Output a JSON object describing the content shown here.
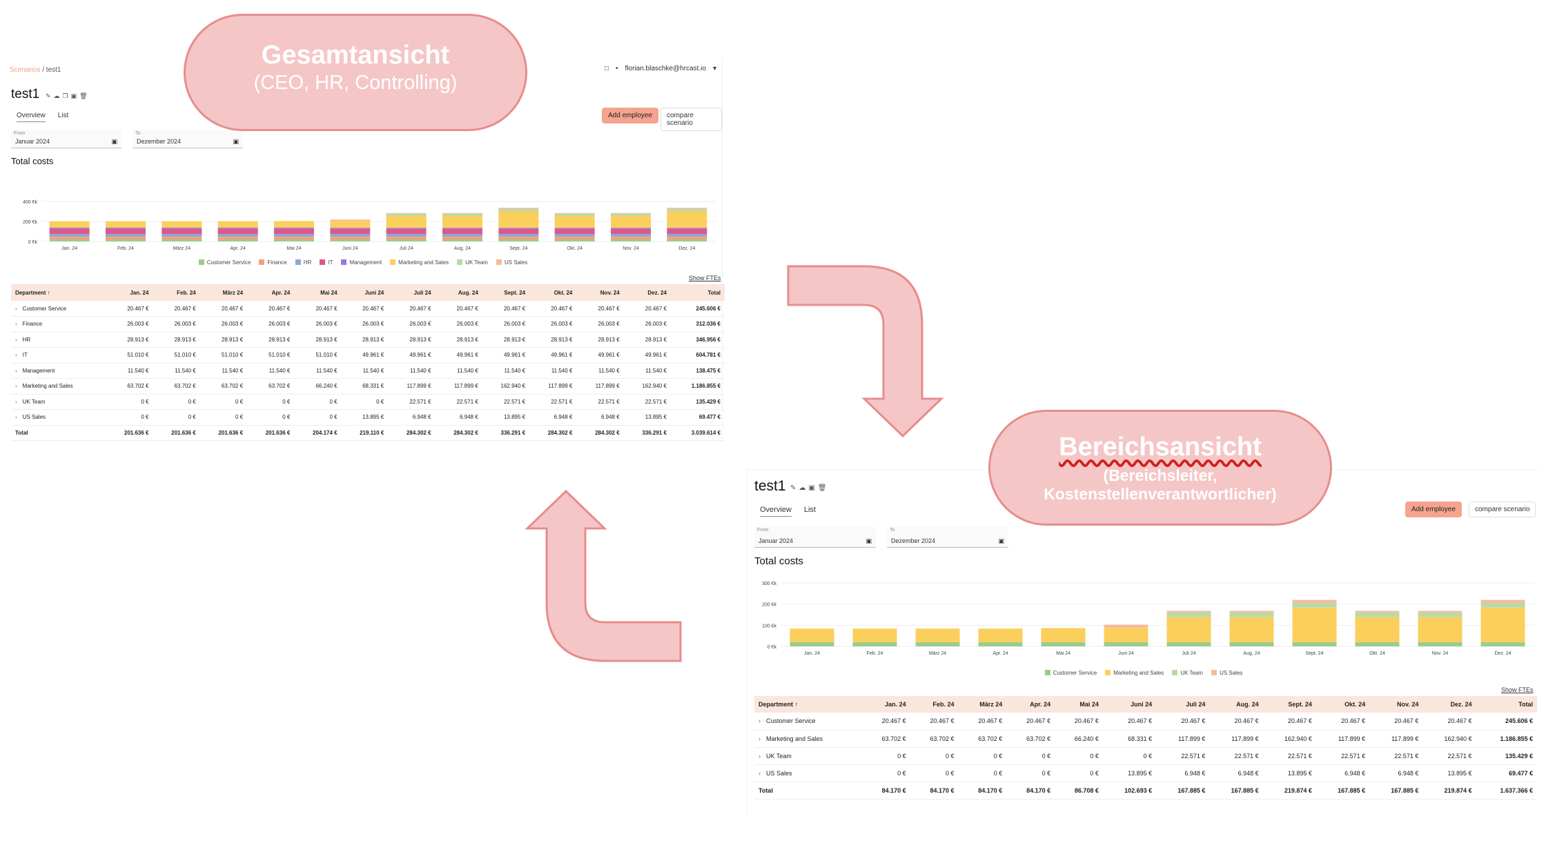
{
  "colors": {
    "accent": "#f4a48e",
    "header_bg": "#fbe6dc",
    "Customer Service": "#9ccc8a",
    "Finance": "#f4a07a",
    "HR": "#8ea8d0",
    "IT": "#e0568a",
    "Management": "#9a78d6",
    "Marketing and Sales": "#fbcf5c",
    "UK Team": "#b8dba6",
    "US Sales": "#f7b99b",
    "overlay_fill": "#f5c6c6",
    "overlay_border": "#e88c8c"
  },
  "overlays": {
    "left_title": "Gesamtansicht",
    "left_sub": "(CEO, HR, Controlling)",
    "right_title": "Bereichsansicht",
    "right_sub_1": "(Bereichsleiter,",
    "right_sub_2": "Kostenstellenverantwortlicher)"
  },
  "full": {
    "breadcrumb_link": "Scenarios",
    "breadcrumb_rest": " / test1",
    "user": "florian.blaschke@hrcast.io",
    "title": "test1",
    "tabs": [
      "Overview",
      "List"
    ],
    "add_employee": "Add employee",
    "compare": "compare scenario",
    "from_label": "From",
    "from_value": "Januar 2024",
    "to_label": "To",
    "to_value": "Dezember 2024",
    "section": "Total costs",
    "show_ftes": "Show FTEs",
    "table_header": [
      "Department ↑",
      "Jan. 24",
      "Feb. 24",
      "März 24",
      "Apr. 24",
      "Mai 24",
      "Juni 24",
      "Juli 24",
      "Aug. 24",
      "Sept. 24",
      "Okt. 24",
      "Nov. 24",
      "Dez. 24",
      "Total"
    ],
    "rows": [
      {
        "dep": "Customer Service",
        "cells": [
          "20.467 €",
          "20.467 €",
          "20.467 €",
          "20.467 €",
          "20.467 €",
          "20.467 €",
          "20.467 €",
          "20.467 €",
          "20.467 €",
          "20.467 €",
          "20.467 €",
          "20.467 €",
          "245.606 €"
        ]
      },
      {
        "dep": "Finance",
        "cells": [
          "26.003 €",
          "26.003 €",
          "26.003 €",
          "26.003 €",
          "26.003 €",
          "26.003 €",
          "26.003 €",
          "26.003 €",
          "26.003 €",
          "26.003 €",
          "26.003 €",
          "26.003 €",
          "312.036 €"
        ]
      },
      {
        "dep": "HR",
        "cells": [
          "28.913 €",
          "28.913 €",
          "28.913 €",
          "28.913 €",
          "28.913 €",
          "28.913 €",
          "28.913 €",
          "28.913 €",
          "28.913 €",
          "28.913 €",
          "28.913 €",
          "28.913 €",
          "346.956 €"
        ]
      },
      {
        "dep": "IT",
        "cells": [
          "51.010 €",
          "51.010 €",
          "51.010 €",
          "51.010 €",
          "51.010 €",
          "49.961 €",
          "49.961 €",
          "49.961 €",
          "49.961 €",
          "49.961 €",
          "49.961 €",
          "49.961 €",
          "604.781 €"
        ]
      },
      {
        "dep": "Management",
        "cells": [
          "11.540 €",
          "11.540 €",
          "11.540 €",
          "11.540 €",
          "11.540 €",
          "11.540 €",
          "11.540 €",
          "11.540 €",
          "11.540 €",
          "11.540 €",
          "11.540 €",
          "11.540 €",
          "138.475 €"
        ]
      },
      {
        "dep": "Marketing and Sales",
        "cells": [
          "63.702 €",
          "63.702 €",
          "63.702 €",
          "63.702 €",
          "66.240 €",
          "68.331 €",
          "117.899 €",
          "117.899 €",
          "162.940 €",
          "117.899 €",
          "117.899 €",
          "162.940 €",
          "1.186.855 €"
        ]
      },
      {
        "dep": "UK Team",
        "cells": [
          "0 €",
          "0 €",
          "0 €",
          "0 €",
          "0 €",
          "0 €",
          "22.571 €",
          "22.571 €",
          "22.571 €",
          "22.571 €",
          "22.571 €",
          "22.571 €",
          "135.429 €"
        ]
      },
      {
        "dep": "US Sales",
        "cells": [
          "0 €",
          "0 €",
          "0 €",
          "0 €",
          "0 €",
          "13.895 €",
          "6.948 €",
          "6.948 €",
          "13.895 €",
          "6.948 €",
          "6.948 €",
          "13.895 €",
          "69.477 €"
        ]
      }
    ],
    "total_row": {
      "dep": "Total",
      "cells": [
        "201.636 €",
        "201.636 €",
        "201.636 €",
        "201.636 €",
        "204.174 €",
        "219.110 €",
        "284.302 €",
        "284.302 €",
        "336.291 €",
        "284.302 €",
        "284.302 €",
        "336.291 €",
        "3.039.614 €"
      ]
    }
  },
  "area": {
    "title": "test1",
    "tabs": [
      "Overview",
      "List"
    ],
    "add_employee": "Add employee",
    "compare": "compare scenario",
    "from_label": "From",
    "from_value": "Januar 2024",
    "to_label": "To",
    "to_value": "Dezember 2024",
    "section": "Total costs",
    "show_ftes": "Show FTEs",
    "table_header": [
      "Department ↑",
      "Jan. 24",
      "Feb. 24",
      "März 24",
      "Apr. 24",
      "Mai 24",
      "Juni 24",
      "Juli 24",
      "Aug. 24",
      "Sept. 24",
      "Okt. 24",
      "Nov. 24",
      "Dez. 24",
      "Total"
    ],
    "rows": [
      {
        "dep": "Customer Service",
        "cells": [
          "20.467 €",
          "20.467 €",
          "20.467 €",
          "20.467 €",
          "20.467 €",
          "20.467 €",
          "20.467 €",
          "20.467 €",
          "20.467 €",
          "20.467 €",
          "20.467 €",
          "20.467 €",
          "245.606 €"
        ]
      },
      {
        "dep": "Marketing and Sales",
        "cells": [
          "63.702 €",
          "63.702 €",
          "63.702 €",
          "63.702 €",
          "66.240 €",
          "68.331 €",
          "117.899 €",
          "117.899 €",
          "162.940 €",
          "117.899 €",
          "117.899 €",
          "162.940 €",
          "1.186.855 €"
        ]
      },
      {
        "dep": "UK Team",
        "cells": [
          "0 €",
          "0 €",
          "0 €",
          "0 €",
          "0 €",
          "0 €",
          "22.571 €",
          "22.571 €",
          "22.571 €",
          "22.571 €",
          "22.571 €",
          "22.571 €",
          "135.429 €"
        ]
      },
      {
        "dep": "US Sales",
        "cells": [
          "0 €",
          "0 €",
          "0 €",
          "0 €",
          "0 €",
          "13.895 €",
          "6.948 €",
          "6.948 €",
          "13.895 €",
          "6.948 €",
          "6.948 €",
          "13.895 €",
          "69.477 €"
        ]
      }
    ],
    "total_row": {
      "dep": "Total",
      "cells": [
        "84.170 €",
        "84.170 €",
        "84.170 €",
        "84.170 €",
        "86.708 €",
        "102.693 €",
        "167.885 €",
        "167.885 €",
        "219.874 €",
        "167.885 €",
        "167.885 €",
        "219.874 €",
        "1.637.366 €"
      ]
    }
  },
  "chart_data": [
    {
      "type": "bar",
      "stacked": true,
      "title": "Total costs",
      "ylabel": "",
      "ytick_labels": [
        "0 €k",
        "200 €k",
        "400 €k"
      ],
      "ylim": [
        0,
        400
      ],
      "categories": [
        "Jan. 24",
        "Feb. 24",
        "März 24",
        "Apr. 24",
        "Mai 24",
        "Juni 24",
        "Juli 24",
        "Aug. 24",
        "Sept. 24",
        "Okt. 24",
        "Nov. 24",
        "Dez. 24"
      ],
      "legend": "bottom",
      "series": [
        {
          "name": "Customer Service",
          "values": [
            20.467,
            20.467,
            20.467,
            20.467,
            20.467,
            20.467,
            20.467,
            20.467,
            20.467,
            20.467,
            20.467,
            20.467
          ]
        },
        {
          "name": "Finance",
          "values": [
            26.003,
            26.003,
            26.003,
            26.003,
            26.003,
            26.003,
            26.003,
            26.003,
            26.003,
            26.003,
            26.003,
            26.003
          ]
        },
        {
          "name": "HR",
          "values": [
            28.913,
            28.913,
            28.913,
            28.913,
            28.913,
            28.913,
            28.913,
            28.913,
            28.913,
            28.913,
            28.913,
            28.913
          ]
        },
        {
          "name": "IT",
          "values": [
            51.01,
            51.01,
            51.01,
            51.01,
            51.01,
            49.961,
            49.961,
            49.961,
            49.961,
            49.961,
            49.961,
            49.961
          ]
        },
        {
          "name": "Management",
          "values": [
            11.54,
            11.54,
            11.54,
            11.54,
            11.54,
            11.54,
            11.54,
            11.54,
            11.54,
            11.54,
            11.54,
            11.54
          ]
        },
        {
          "name": "Marketing and Sales",
          "values": [
            63.702,
            63.702,
            63.702,
            63.702,
            66.24,
            68.331,
            117.899,
            117.899,
            162.94,
            117.899,
            117.899,
            162.94
          ]
        },
        {
          "name": "UK Team",
          "values": [
            0,
            0,
            0,
            0,
            0,
            0,
            22.571,
            22.571,
            22.571,
            22.571,
            22.571,
            22.571
          ]
        },
        {
          "name": "US Sales",
          "values": [
            0,
            0,
            0,
            0,
            0,
            13.895,
            6.948,
            6.948,
            13.895,
            6.948,
            6.948,
            13.895
          ]
        }
      ]
    },
    {
      "type": "bar",
      "stacked": true,
      "title": "Total costs",
      "ylabel": "",
      "ytick_labels": [
        "0 €k",
        "100 €k",
        "200 €k",
        "300 €k"
      ],
      "ylim": [
        0,
        300
      ],
      "categories": [
        "Jan. 24",
        "Feb. 24",
        "März 24",
        "Apr. 24",
        "Mai 24",
        "Juni 24",
        "Juli 24",
        "Aug. 24",
        "Sept. 24",
        "Okt. 24",
        "Nov. 24",
        "Dez. 24"
      ],
      "legend": "bottom",
      "series": [
        {
          "name": "Customer Service",
          "values": [
            20.467,
            20.467,
            20.467,
            20.467,
            20.467,
            20.467,
            20.467,
            20.467,
            20.467,
            20.467,
            20.467,
            20.467
          ]
        },
        {
          "name": "Marketing and Sales",
          "values": [
            63.702,
            63.702,
            63.702,
            63.702,
            66.24,
            68.331,
            117.899,
            117.899,
            162.94,
            117.899,
            117.899,
            162.94
          ]
        },
        {
          "name": "UK Team",
          "values": [
            0,
            0,
            0,
            0,
            0,
            0,
            22.571,
            22.571,
            22.571,
            22.571,
            22.571,
            22.571
          ]
        },
        {
          "name": "US Sales",
          "values": [
            0,
            0,
            0,
            0,
            0,
            13.895,
            6.948,
            6.948,
            13.895,
            6.948,
            6.948,
            13.895
          ]
        }
      ]
    }
  ]
}
